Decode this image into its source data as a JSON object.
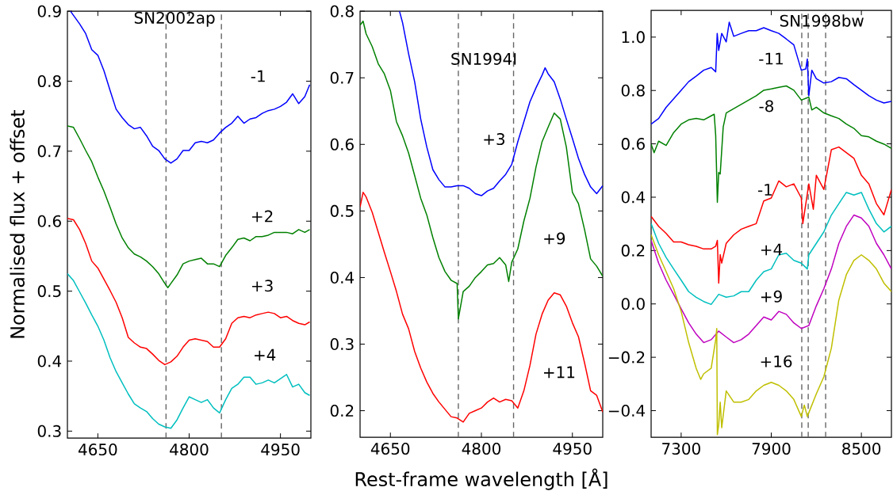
{
  "chart_data": [
    {
      "type": "line",
      "title": "SN2002ap",
      "ylabel": "Normalised flux + offset",
      "xlim": [
        4600,
        5000
      ],
      "xticks": [
        4650,
        4800,
        4950
      ],
      "ylim": [
        0.29,
        0.9
      ],
      "yticks": [
        0.3,
        0.4,
        0.5,
        0.6,
        0.7,
        0.8,
        0.9
      ],
      "ref_lines": [
        {
          "axis": "x",
          "value": 4762,
          "color": "#666666",
          "line_style": "dashed"
        },
        {
          "axis": "x",
          "value": 4853,
          "color": "#666666",
          "line_style": "dashed"
        }
      ],
      "series": [
        {
          "name": "-1",
          "color": "#0000ff",
          "x": [
            4605,
            4620,
            4630,
            4640,
            4650,
            4660,
            4670,
            4680,
            4690,
            4700,
            4710,
            4720,
            4730,
            4740,
            4750,
            4760,
            4770,
            4780,
            4790,
            4800,
            4810,
            4820,
            4830,
            4840,
            4850,
            4860,
            4870,
            4880,
            4890,
            4900,
            4910,
            4920,
            4930,
            4940,
            4950,
            4960,
            4970,
            4980,
            4990,
            4998
          ],
          "values": [
            0.9,
            0.882,
            0.868,
            0.845,
            0.837,
            0.815,
            0.787,
            0.76,
            0.748,
            0.738,
            0.732,
            0.734,
            0.722,
            0.707,
            0.701,
            0.689,
            0.683,
            0.689,
            0.701,
            0.701,
            0.712,
            0.714,
            0.712,
            0.716,
            0.726,
            0.734,
            0.74,
            0.75,
            0.74,
            0.746,
            0.748,
            0.754,
            0.758,
            0.76,
            0.764,
            0.77,
            0.782,
            0.768,
            0.778,
            0.795
          ]
        },
        {
          "name": "+2",
          "color": "#008000",
          "x": [
            4600,
            4610,
            4620,
            4630,
            4640,
            4650,
            4660,
            4670,
            4680,
            4690,
            4700,
            4710,
            4720,
            4730,
            4740,
            4750,
            4760,
            4765,
            4770,
            4780,
            4790,
            4800,
            4810,
            4820,
            4830,
            4840,
            4850,
            4860,
            4870,
            4880,
            4890,
            4900,
            4910,
            4920,
            4930,
            4940,
            4950,
            4960,
            4970,
            4980,
            4990,
            4998
          ],
          "values": [
            0.736,
            0.734,
            0.718,
            0.701,
            0.685,
            0.663,
            0.643,
            0.62,
            0.596,
            0.576,
            0.562,
            0.553,
            0.549,
            0.543,
            0.535,
            0.525,
            0.511,
            0.505,
            0.511,
            0.523,
            0.539,
            0.543,
            0.545,
            0.547,
            0.539,
            0.539,
            0.535,
            0.551,
            0.562,
            0.574,
            0.576,
            0.572,
            0.578,
            0.578,
            0.58,
            0.584,
            0.584,
            0.584,
            0.582,
            0.588,
            0.584,
            0.588
          ]
        },
        {
          "name": "+3",
          "color": "#ff0000",
          "x": [
            4600,
            4610,
            4620,
            4630,
            4640,
            4650,
            4660,
            4670,
            4680,
            4690,
            4700,
            4710,
            4720,
            4730,
            4740,
            4750,
            4760,
            4770,
            4780,
            4790,
            4800,
            4810,
            4820,
            4830,
            4840,
            4850,
            4860,
            4870,
            4880,
            4890,
            4900,
            4910,
            4920,
            4930,
            4940,
            4950,
            4960,
            4970,
            4980,
            4990,
            4998
          ],
          "values": [
            0.604,
            0.602,
            0.588,
            0.568,
            0.543,
            0.533,
            0.517,
            0.501,
            0.484,
            0.462,
            0.434,
            0.426,
            0.42,
            0.418,
            0.41,
            0.401,
            0.395,
            0.399,
            0.407,
            0.42,
            0.43,
            0.432,
            0.43,
            0.428,
            0.42,
            0.42,
            0.432,
            0.454,
            0.462,
            0.464,
            0.462,
            0.466,
            0.468,
            0.47,
            0.468,
            0.462,
            0.464,
            0.458,
            0.454,
            0.452,
            0.456
          ]
        },
        {
          "name": "+4",
          "color": "#00bfbf",
          "x": [
            4600,
            4610,
            4620,
            4630,
            4640,
            4650,
            4660,
            4670,
            4680,
            4690,
            4700,
            4710,
            4720,
            4730,
            4740,
            4750,
            4760,
            4770,
            4780,
            4790,
            4800,
            4810,
            4820,
            4830,
            4840,
            4850,
            4860,
            4870,
            4880,
            4890,
            4900,
            4910,
            4920,
            4930,
            4940,
            4950,
            4960,
            4970,
            4980,
            4990,
            4998
          ],
          "values": [
            0.525,
            0.515,
            0.499,
            0.483,
            0.466,
            0.45,
            0.43,
            0.405,
            0.385,
            0.369,
            0.353,
            0.339,
            0.333,
            0.328,
            0.318,
            0.31,
            0.306,
            0.304,
            0.316,
            0.333,
            0.349,
            0.345,
            0.341,
            0.345,
            0.333,
            0.326,
            0.345,
            0.361,
            0.367,
            0.377,
            0.377,
            0.367,
            0.369,
            0.373,
            0.369,
            0.375,
            0.381,
            0.363,
            0.367,
            0.355,
            0.351
          ]
        }
      ]
    },
    {
      "type": "line",
      "title": "SN1994I",
      "xlabel": "Rest-frame wavelength [Å]",
      "xlim": [
        4600,
        5000
      ],
      "xticks": [
        4650,
        4800,
        4950
      ],
      "ylim": [
        0.16,
        0.8
      ],
      "yticks": [
        0.2,
        0.3,
        0.4,
        0.5,
        0.6,
        0.7,
        0.8
      ],
      "ref_lines": [
        {
          "axis": "x",
          "value": 4762,
          "color": "#666666",
          "line_style": "dashed"
        },
        {
          "axis": "x",
          "value": 4853,
          "color": "#666666",
          "line_style": "dashed"
        }
      ],
      "series": [
        {
          "name": "+3",
          "color": "#0000ff",
          "x": [
            4665,
            4670,
            4680,
            4690,
            4700,
            4710,
            4720,
            4730,
            4740,
            4750,
            4760,
            4770,
            4780,
            4790,
            4800,
            4810,
            4820,
            4830,
            4840,
            4850,
            4860,
            4870,
            4880,
            4890,
            4900,
            4905,
            4910,
            4920,
            4930,
            4940,
            4950,
            4960,
            4970,
            4980,
            4990,
            5000
          ],
          "values": [
            0.8,
            0.783,
            0.736,
            0.694,
            0.638,
            0.596,
            0.562,
            0.547,
            0.536,
            0.536,
            0.538,
            0.538,
            0.534,
            0.526,
            0.523,
            0.53,
            0.534,
            0.545,
            0.555,
            0.57,
            0.604,
            0.634,
            0.664,
            0.685,
            0.704,
            0.715,
            0.706,
            0.694,
            0.668,
            0.638,
            0.609,
            0.579,
            0.555,
            0.536,
            0.526,
            0.538
          ]
        },
        {
          "name": "+9",
          "color": "#008000",
          "x": [
            4600,
            4605,
            4610,
            4620,
            4630,
            4640,
            4650,
            4660,
            4670,
            4680,
            4690,
            4700,
            4710,
            4720,
            4730,
            4740,
            4750,
            4760,
            4762,
            4770,
            4780,
            4790,
            4800,
            4810,
            4820,
            4830,
            4840,
            4845,
            4850,
            4860,
            4870,
            4880,
            4890,
            4900,
            4910,
            4920,
            4930,
            4940,
            4950,
            4960,
            4970,
            4980,
            4990,
            5000
          ],
          "values": [
            0.779,
            0.785,
            0.766,
            0.747,
            0.721,
            0.706,
            0.681,
            0.634,
            0.613,
            0.587,
            0.553,
            0.519,
            0.494,
            0.46,
            0.43,
            0.409,
            0.396,
            0.391,
            0.338,
            0.379,
            0.387,
            0.4,
            0.409,
            0.419,
            0.421,
            0.43,
            0.419,
            0.394,
            0.423,
            0.443,
            0.485,
            0.519,
            0.566,
            0.604,
            0.626,
            0.647,
            0.638,
            0.596,
            0.528,
            0.511,
            0.472,
            0.428,
            0.417,
            0.402
          ]
        },
        {
          "name": "+11",
          "color": "#ff0000",
          "x": [
            4600,
            4605,
            4610,
            4620,
            4630,
            4640,
            4650,
            4660,
            4670,
            4680,
            4690,
            4700,
            4710,
            4720,
            4730,
            4740,
            4750,
            4760,
            4770,
            4780,
            4790,
            4800,
            4810,
            4820,
            4830,
            4840,
            4850,
            4860,
            4870,
            4880,
            4890,
            4900,
            4910,
            4920,
            4930,
            4940,
            4950,
            4960,
            4970,
            4980,
            4990,
            5000
          ],
          "values": [
            0.506,
            0.528,
            0.521,
            0.498,
            0.468,
            0.438,
            0.409,
            0.379,
            0.345,
            0.323,
            0.289,
            0.264,
            0.243,
            0.226,
            0.213,
            0.202,
            0.191,
            0.189,
            0.183,
            0.196,
            0.2,
            0.204,
            0.213,
            0.219,
            0.213,
            0.217,
            0.215,
            0.204,
            0.23,
            0.268,
            0.315,
            0.345,
            0.366,
            0.377,
            0.374,
            0.357,
            0.332,
            0.311,
            0.272,
            0.23,
            0.223,
            0.198
          ]
        }
      ]
    },
    {
      "type": "line",
      "title": "SN1998bw",
      "xlim": [
        7100,
        8700
      ],
      "xticks": [
        7300,
        7900,
        8500
      ],
      "ylim": [
        -0.5,
        1.1
      ],
      "yticks": [
        {
          "value": -0.4,
          "label": "−0.4"
        },
        {
          "value": -0.2,
          "label": "−0.2"
        },
        {
          "value": 0,
          "label": "0.0"
        },
        0.2,
        0.4,
        0.6,
        0.8,
        {
          "value": 1,
          "label": "1.0"
        }
      ],
      "ref_lines": [
        {
          "axis": "x",
          "value": 8103,
          "color": "#666666",
          "line_style": "dashed"
        },
        {
          "axis": "x",
          "value": 8146,
          "color": "#666666",
          "line_style": "dashed"
        },
        {
          "axis": "x",
          "value": 8262,
          "color": "#666666",
          "line_style": "dashed"
        }
      ],
      "series": [
        {
          "name": "-11",
          "color": "#0000ff",
          "x": [
            7100,
            7150,
            7200,
            7250,
            7300,
            7350,
            7400,
            7450,
            7500,
            7530,
            7540,
            7550,
            7570,
            7600,
            7620,
            7650,
            7700,
            7750,
            7800,
            7850,
            7900,
            7950,
            8000,
            8050,
            8100,
            8130,
            8140,
            8150,
            8170,
            8200,
            8250,
            8300,
            8350,
            8400,
            8450,
            8500,
            8550,
            8600,
            8650,
            8700
          ],
          "values": [
            0.674,
            0.695,
            0.737,
            0.769,
            0.801,
            0.833,
            0.854,
            0.876,
            0.886,
            0.87,
            1.014,
            0.95,
            1.014,
            0.982,
            1.056,
            1.003,
            1.014,
            1.024,
            1.024,
            1.035,
            1.024,
            1.014,
            0.993,
            0.971,
            0.876,
            0.881,
            0.918,
            0.78,
            0.876,
            0.844,
            0.828,
            0.833,
            0.849,
            0.844,
            0.822,
            0.801,
            0.78,
            0.764,
            0.753,
            0.759
          ]
        },
        {
          "name": "-8",
          "color": "#008000",
          "x": [
            7100,
            7120,
            7150,
            7200,
            7250,
            7300,
            7350,
            7400,
            7450,
            7500,
            7520,
            7530,
            7541,
            7550,
            7560,
            7580,
            7600,
            7650,
            7700,
            7750,
            7800,
            7850,
            7900,
            7950,
            8000,
            8050,
            8100,
            8150,
            8170,
            8200,
            8250,
            8300,
            8350,
            8400,
            8450,
            8500,
            8550,
            8600,
            8650,
            8700
          ],
          "values": [
            0.599,
            0.567,
            0.61,
            0.594,
            0.642,
            0.674,
            0.69,
            0.695,
            0.69,
            0.705,
            0.711,
            0.631,
            0.381,
            0.493,
            0.487,
            0.663,
            0.716,
            0.732,
            0.748,
            0.764,
            0.78,
            0.801,
            0.806,
            0.812,
            0.817,
            0.801,
            0.764,
            0.775,
            0.727,
            0.737,
            0.716,
            0.705,
            0.695,
            0.674,
            0.658,
            0.631,
            0.626,
            0.61,
            0.599,
            0.583
          ]
        },
        {
          "name": "-1",
          "color": "#ff0000",
          "x": [
            7100,
            7150,
            7200,
            7250,
            7300,
            7350,
            7400,
            7450,
            7500,
            7530,
            7541,
            7550,
            7560,
            7570,
            7600,
            7650,
            7700,
            7750,
            7800,
            7850,
            7900,
            7950,
            8000,
            8050,
            8100,
            8110,
            8150,
            8180,
            8200,
            8250,
            8300,
            8350,
            8400,
            8450,
            8500,
            8550,
            8600,
            8650,
            8700
          ],
          "values": [
            0.328,
            0.291,
            0.264,
            0.232,
            0.232,
            0.222,
            0.216,
            0.206,
            0.206,
            0.216,
            0.238,
            0.078,
            0.185,
            0.153,
            0.227,
            0.259,
            0.28,
            0.291,
            0.301,
            0.386,
            0.397,
            0.461,
            0.439,
            0.45,
            0.397,
            0.301,
            0.45,
            0.355,
            0.482,
            0.429,
            0.578,
            0.588,
            0.567,
            0.546,
            0.482,
            0.45,
            0.376,
            0.334,
            0.429
          ]
        },
        {
          "name": "+4",
          "color": "#00bfbf",
          "x": [
            7100,
            7150,
            7200,
            7250,
            7300,
            7350,
            7400,
            7450,
            7500,
            7550,
            7600,
            7650,
            7700,
            7750,
            7800,
            7850,
            7900,
            7950,
            8000,
            8050,
            8100,
            8140,
            8150,
            8200,
            8250,
            8300,
            8350,
            8400,
            8450,
            8500,
            8550,
            8600,
            8650,
            8700
          ],
          "values": [
            0.301,
            0.227,
            0.174,
            0.131,
            0.089,
            0.046,
            0.025,
            0.009,
            -0.002,
            0.036,
            0.025,
            0.03,
            0.046,
            0.046,
            0.089,
            0.121,
            0.131,
            0.184,
            0.19,
            0.163,
            0.153,
            0.131,
            0.184,
            0.227,
            0.27,
            0.333,
            0.376,
            0.418,
            0.408,
            0.418,
            0.355,
            0.301,
            0.27,
            0.291
          ]
        },
        {
          "name": "+9",
          "color": "#bf00bf",
          "x": [
            7100,
            7150,
            7200,
            7250,
            7300,
            7350,
            7400,
            7450,
            7500,
            7550,
            7600,
            7650,
            7700,
            7750,
            7800,
            7850,
            7900,
            7950,
            8000,
            8050,
            8100,
            8150,
            8200,
            8250,
            8300,
            8350,
            8400,
            8450,
            8500,
            8550,
            8600,
            8650,
            8700
          ],
          "values": [
            0.238,
            0.153,
            0.089,
            0.036,
            -0.018,
            -0.071,
            -0.113,
            -0.145,
            -0.134,
            -0.102,
            -0.124,
            -0.145,
            -0.134,
            -0.113,
            -0.081,
            -0.049,
            -0.06,
            -0.028,
            -0.039,
            -0.071,
            -0.092,
            -0.081,
            -0.007,
            0.057,
            0.131,
            0.227,
            0.291,
            0.333,
            0.322,
            0.291,
            0.227,
            0.184,
            0.131
          ]
        },
        {
          "name": "+16",
          "color": "#bfbf00",
          "x": [
            7100,
            7150,
            7200,
            7250,
            7300,
            7350,
            7400,
            7430,
            7450,
            7500,
            7530,
            7537,
            7541,
            7550,
            7560,
            7570,
            7600,
            7650,
            7700,
            7750,
            7800,
            7850,
            7900,
            7950,
            8000,
            8050,
            8100,
            8120,
            8140,
            8200,
            8250,
            8300,
            8350,
            8400,
            8450,
            8500,
            8550,
            8600,
            8650,
            8700
          ],
          "values": [
            0.259,
            0.184,
            0.121,
            0.057,
            -0.028,
            -0.145,
            -0.241,
            -0.283,
            -0.262,
            -0.241,
            -0.134,
            -0.092,
            -0.49,
            -0.453,
            -0.368,
            -0.464,
            -0.326,
            -0.368,
            -0.368,
            -0.358,
            -0.326,
            -0.305,
            -0.294,
            -0.305,
            -0.326,
            -0.358,
            -0.422,
            -0.379,
            -0.422,
            -0.337,
            -0.273,
            -0.166,
            0.015,
            0.11,
            0.163,
            0.184,
            0.163,
            0.131,
            0.078,
            0.046
          ]
        }
      ]
    }
  ]
}
